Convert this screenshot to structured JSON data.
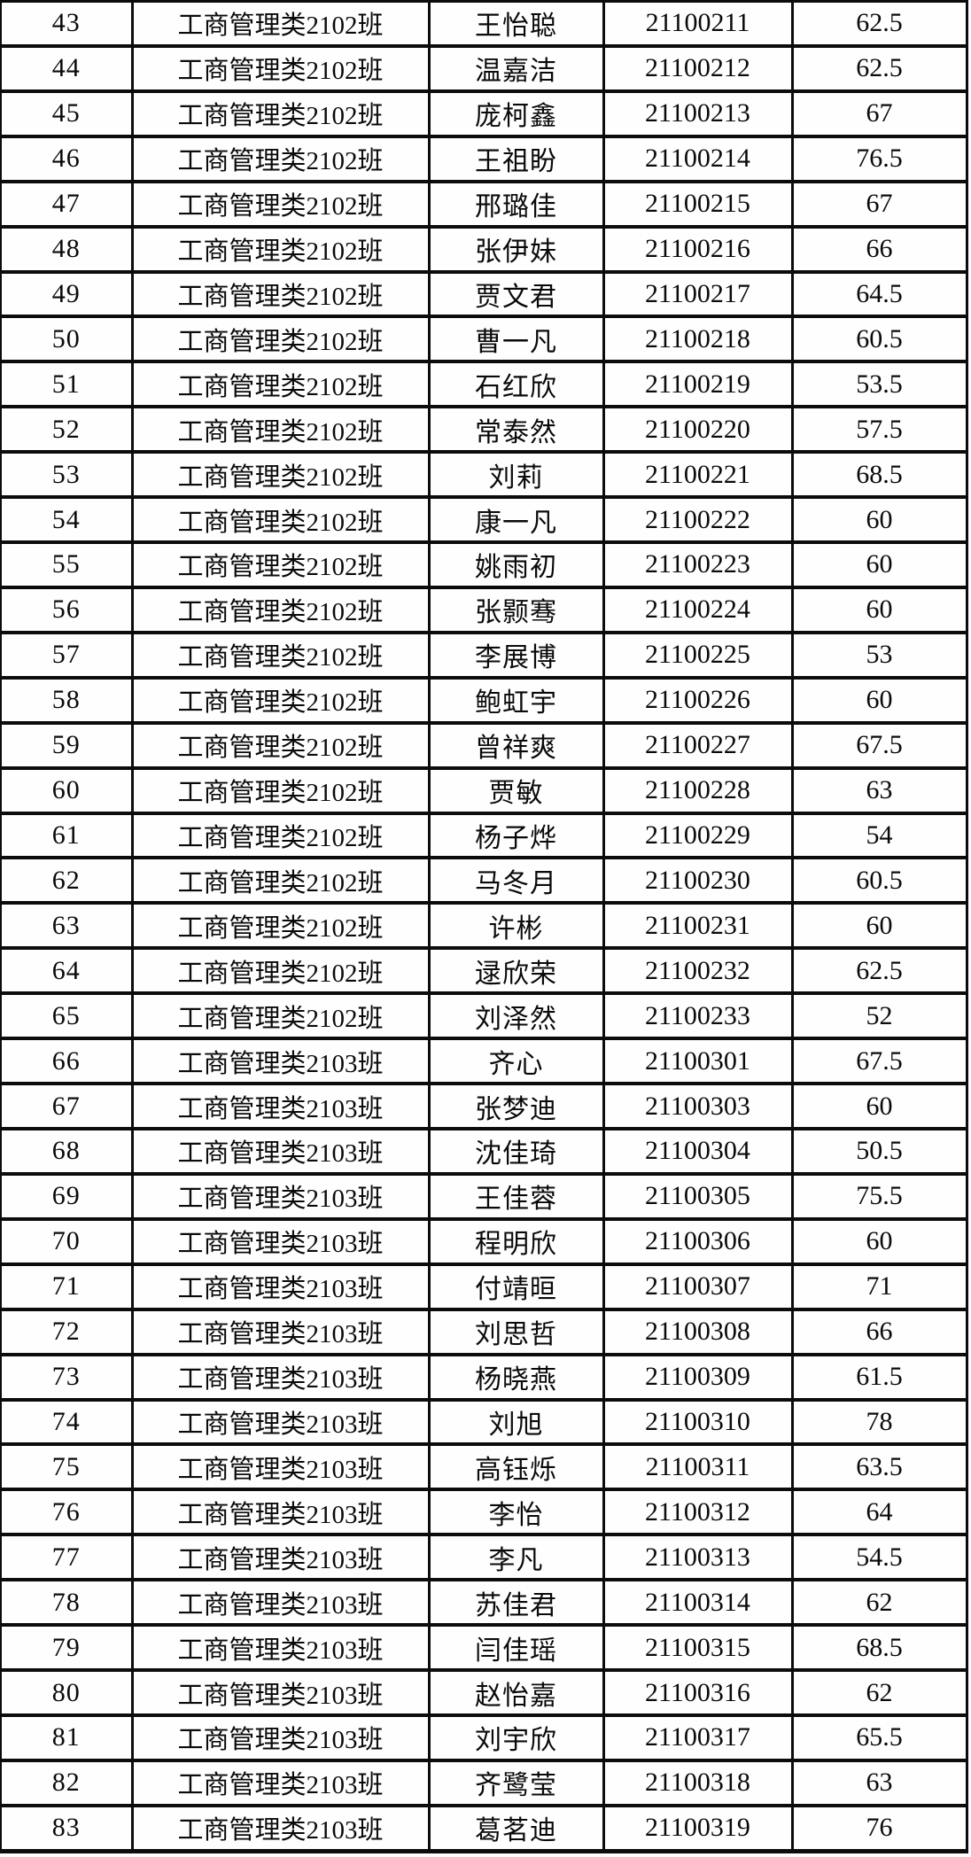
{
  "table": {
    "name": "student-score-table",
    "columns": [
      "seq",
      "class",
      "name",
      "student_id",
      "score"
    ],
    "rows": [
      {
        "seq": "43",
        "class": "工商管理类2102班",
        "name": "王怡聪",
        "student_id": "21100211",
        "score": "62.5"
      },
      {
        "seq": "44",
        "class": "工商管理类2102班",
        "name": "温嘉洁",
        "student_id": "21100212",
        "score": "62.5"
      },
      {
        "seq": "45",
        "class": "工商管理类2102班",
        "name": "庞柯鑫",
        "student_id": "21100213",
        "score": "67"
      },
      {
        "seq": "46",
        "class": "工商管理类2102班",
        "name": "王祖盼",
        "student_id": "21100214",
        "score": "76.5"
      },
      {
        "seq": "47",
        "class": "工商管理类2102班",
        "name": "邢璐佳",
        "student_id": "21100215",
        "score": "67"
      },
      {
        "seq": "48",
        "class": "工商管理类2102班",
        "name": "张伊妹",
        "student_id": "21100216",
        "score": "66"
      },
      {
        "seq": "49",
        "class": "工商管理类2102班",
        "name": "贾文君",
        "student_id": "21100217",
        "score": "64.5"
      },
      {
        "seq": "50",
        "class": "工商管理类2102班",
        "name": "曹一凡",
        "student_id": "21100218",
        "score": "60.5"
      },
      {
        "seq": "51",
        "class": "工商管理类2102班",
        "name": "石红欣",
        "student_id": "21100219",
        "score": "53.5"
      },
      {
        "seq": "52",
        "class": "工商管理类2102班",
        "name": "常泰然",
        "student_id": "21100220",
        "score": "57.5"
      },
      {
        "seq": "53",
        "class": "工商管理类2102班",
        "name": "刘莉",
        "student_id": "21100221",
        "score": "68.5"
      },
      {
        "seq": "54",
        "class": "工商管理类2102班",
        "name": "康一凡",
        "student_id": "21100222",
        "score": "60"
      },
      {
        "seq": "55",
        "class": "工商管理类2102班",
        "name": "姚雨初",
        "student_id": "21100223",
        "score": "60"
      },
      {
        "seq": "56",
        "class": "工商管理类2102班",
        "name": "张颢骞",
        "student_id": "21100224",
        "score": "60"
      },
      {
        "seq": "57",
        "class": "工商管理类2102班",
        "name": "李展博",
        "student_id": "21100225",
        "score": "53"
      },
      {
        "seq": "58",
        "class": "工商管理类2102班",
        "name": "鲍虹宇",
        "student_id": "21100226",
        "score": "60"
      },
      {
        "seq": "59",
        "class": "工商管理类2102班",
        "name": "曾祥爽",
        "student_id": "21100227",
        "score": "67.5"
      },
      {
        "seq": "60",
        "class": "工商管理类2102班",
        "name": "贾敏",
        "student_id": "21100228",
        "score": "63"
      },
      {
        "seq": "61",
        "class": "工商管理类2102班",
        "name": "杨子烨",
        "student_id": "21100229",
        "score": "54"
      },
      {
        "seq": "62",
        "class": "工商管理类2102班",
        "name": "马冬月",
        "student_id": "21100230",
        "score": "60.5"
      },
      {
        "seq": "63",
        "class": "工商管理类2102班",
        "name": "许彬",
        "student_id": "21100231",
        "score": "60"
      },
      {
        "seq": "64",
        "class": "工商管理类2102班",
        "name": "逯欣荣",
        "student_id": "21100232",
        "score": "62.5"
      },
      {
        "seq": "65",
        "class": "工商管理类2102班",
        "name": "刘泽然",
        "student_id": "21100233",
        "score": "52"
      },
      {
        "seq": "66",
        "class": "工商管理类2103班",
        "name": "齐心",
        "student_id": "21100301",
        "score": "67.5"
      },
      {
        "seq": "67",
        "class": "工商管理类2103班",
        "name": "张梦迪",
        "student_id": "21100303",
        "score": "60"
      },
      {
        "seq": "68",
        "class": "工商管理类2103班",
        "name": "沈佳琦",
        "student_id": "21100304",
        "score": "50.5"
      },
      {
        "seq": "69",
        "class": "工商管理类2103班",
        "name": "王佳蓉",
        "student_id": "21100305",
        "score": "75.5"
      },
      {
        "seq": "70",
        "class": "工商管理类2103班",
        "name": "程明欣",
        "student_id": "21100306",
        "score": "60"
      },
      {
        "seq": "71",
        "class": "工商管理类2103班",
        "name": "付靖晅",
        "student_id": "21100307",
        "score": "71"
      },
      {
        "seq": "72",
        "class": "工商管理类2103班",
        "name": "刘思哲",
        "student_id": "21100308",
        "score": "66"
      },
      {
        "seq": "73",
        "class": "工商管理类2103班",
        "name": "杨晓燕",
        "student_id": "21100309",
        "score": "61.5"
      },
      {
        "seq": "74",
        "class": "工商管理类2103班",
        "name": "刘旭",
        "student_id": "21100310",
        "score": "78"
      },
      {
        "seq": "75",
        "class": "工商管理类2103班",
        "name": "高钰烁",
        "student_id": "21100311",
        "score": "63.5"
      },
      {
        "seq": "76",
        "class": "工商管理类2103班",
        "name": "李怡",
        "student_id": "21100312",
        "score": "64"
      },
      {
        "seq": "77",
        "class": "工商管理类2103班",
        "name": "李凡",
        "student_id": "21100313",
        "score": "54.5"
      },
      {
        "seq": "78",
        "class": "工商管理类2103班",
        "name": "苏佳君",
        "student_id": "21100314",
        "score": "62"
      },
      {
        "seq": "79",
        "class": "工商管理类2103班",
        "name": "闫佳瑶",
        "student_id": "21100315",
        "score": "68.5"
      },
      {
        "seq": "80",
        "class": "工商管理类2103班",
        "name": "赵怡嘉",
        "student_id": "21100316",
        "score": "62"
      },
      {
        "seq": "81",
        "class": "工商管理类2103班",
        "name": "刘宇欣",
        "student_id": "21100317",
        "score": "65.5"
      },
      {
        "seq": "82",
        "class": "工商管理类2103班",
        "name": "齐鹭莹",
        "student_id": "21100318",
        "score": "63"
      },
      {
        "seq": "83",
        "class": "工商管理类2103班",
        "name": "葛茗迪",
        "student_id": "21100319",
        "score": "76"
      }
    ]
  }
}
